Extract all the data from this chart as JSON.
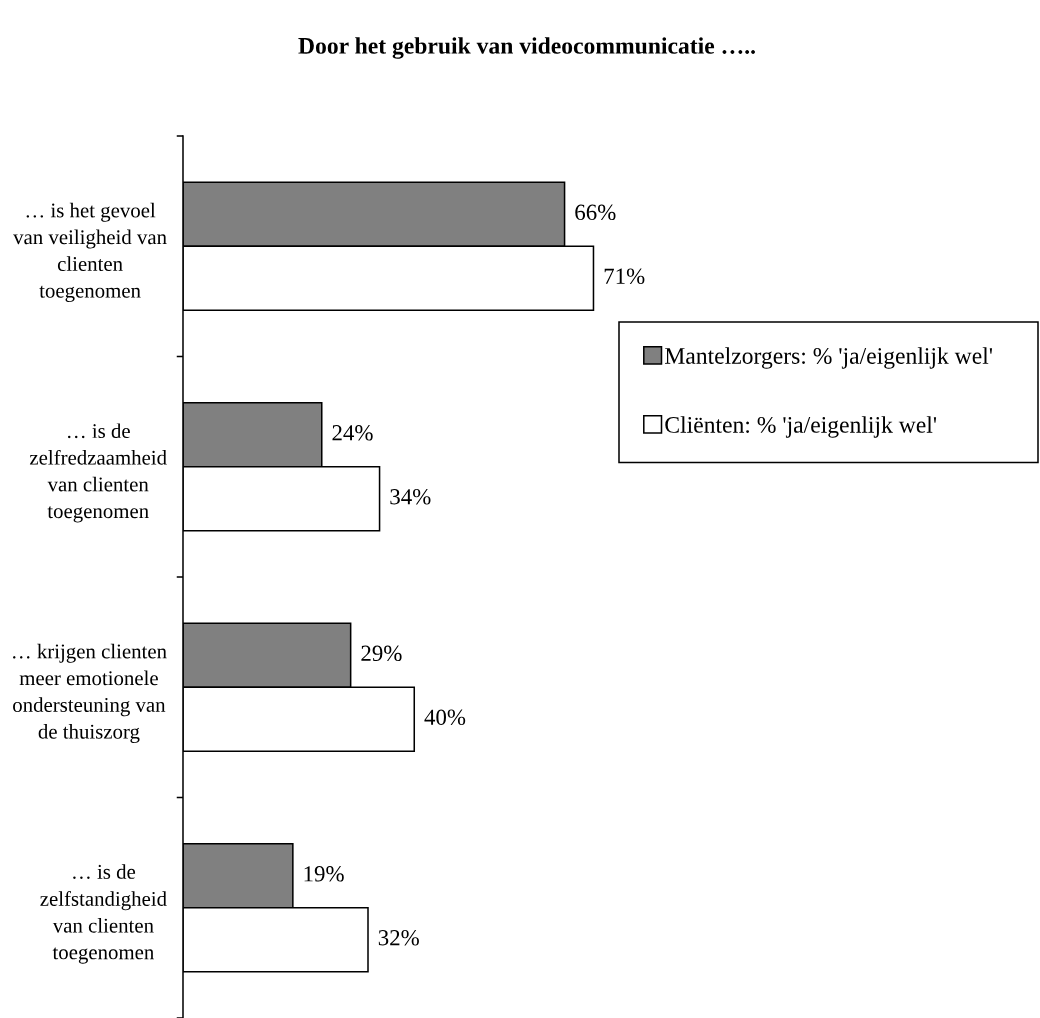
{
  "chart_data": {
    "type": "bar",
    "orientation": "horizontal",
    "title": "Door het gebruik van videocommunicatie …..",
    "categories": [
      "… is het gevoel\nvan veiligheid van\nclienten\ntoegenomen",
      "… is de\nzelfredzaamheid\nvan clienten\ntoegenomen",
      "… krijgen clienten\nmeer emotionele\nondersteuning van\nde thuiszorg",
      "… is de\nzelfstandigheid\nvan clienten\ntoegenomen"
    ],
    "series": [
      {
        "name": "Mantelzorgers: % 'ja/eigenlijk wel'",
        "color": "#808080",
        "values": [
          66,
          24,
          29,
          19
        ],
        "value_labels": [
          "66%",
          "24%",
          "29%",
          "19%"
        ]
      },
      {
        "name": "Cliënten: % 'ja/eigenlijk wel'",
        "color": "#ffffff",
        "values": [
          71,
          34,
          40,
          32
        ],
        "value_labels": [
          "71%",
          "34%",
          "40%",
          "32%"
        ]
      }
    ],
    "legend": "right",
    "tick_labels": "y"
  }
}
